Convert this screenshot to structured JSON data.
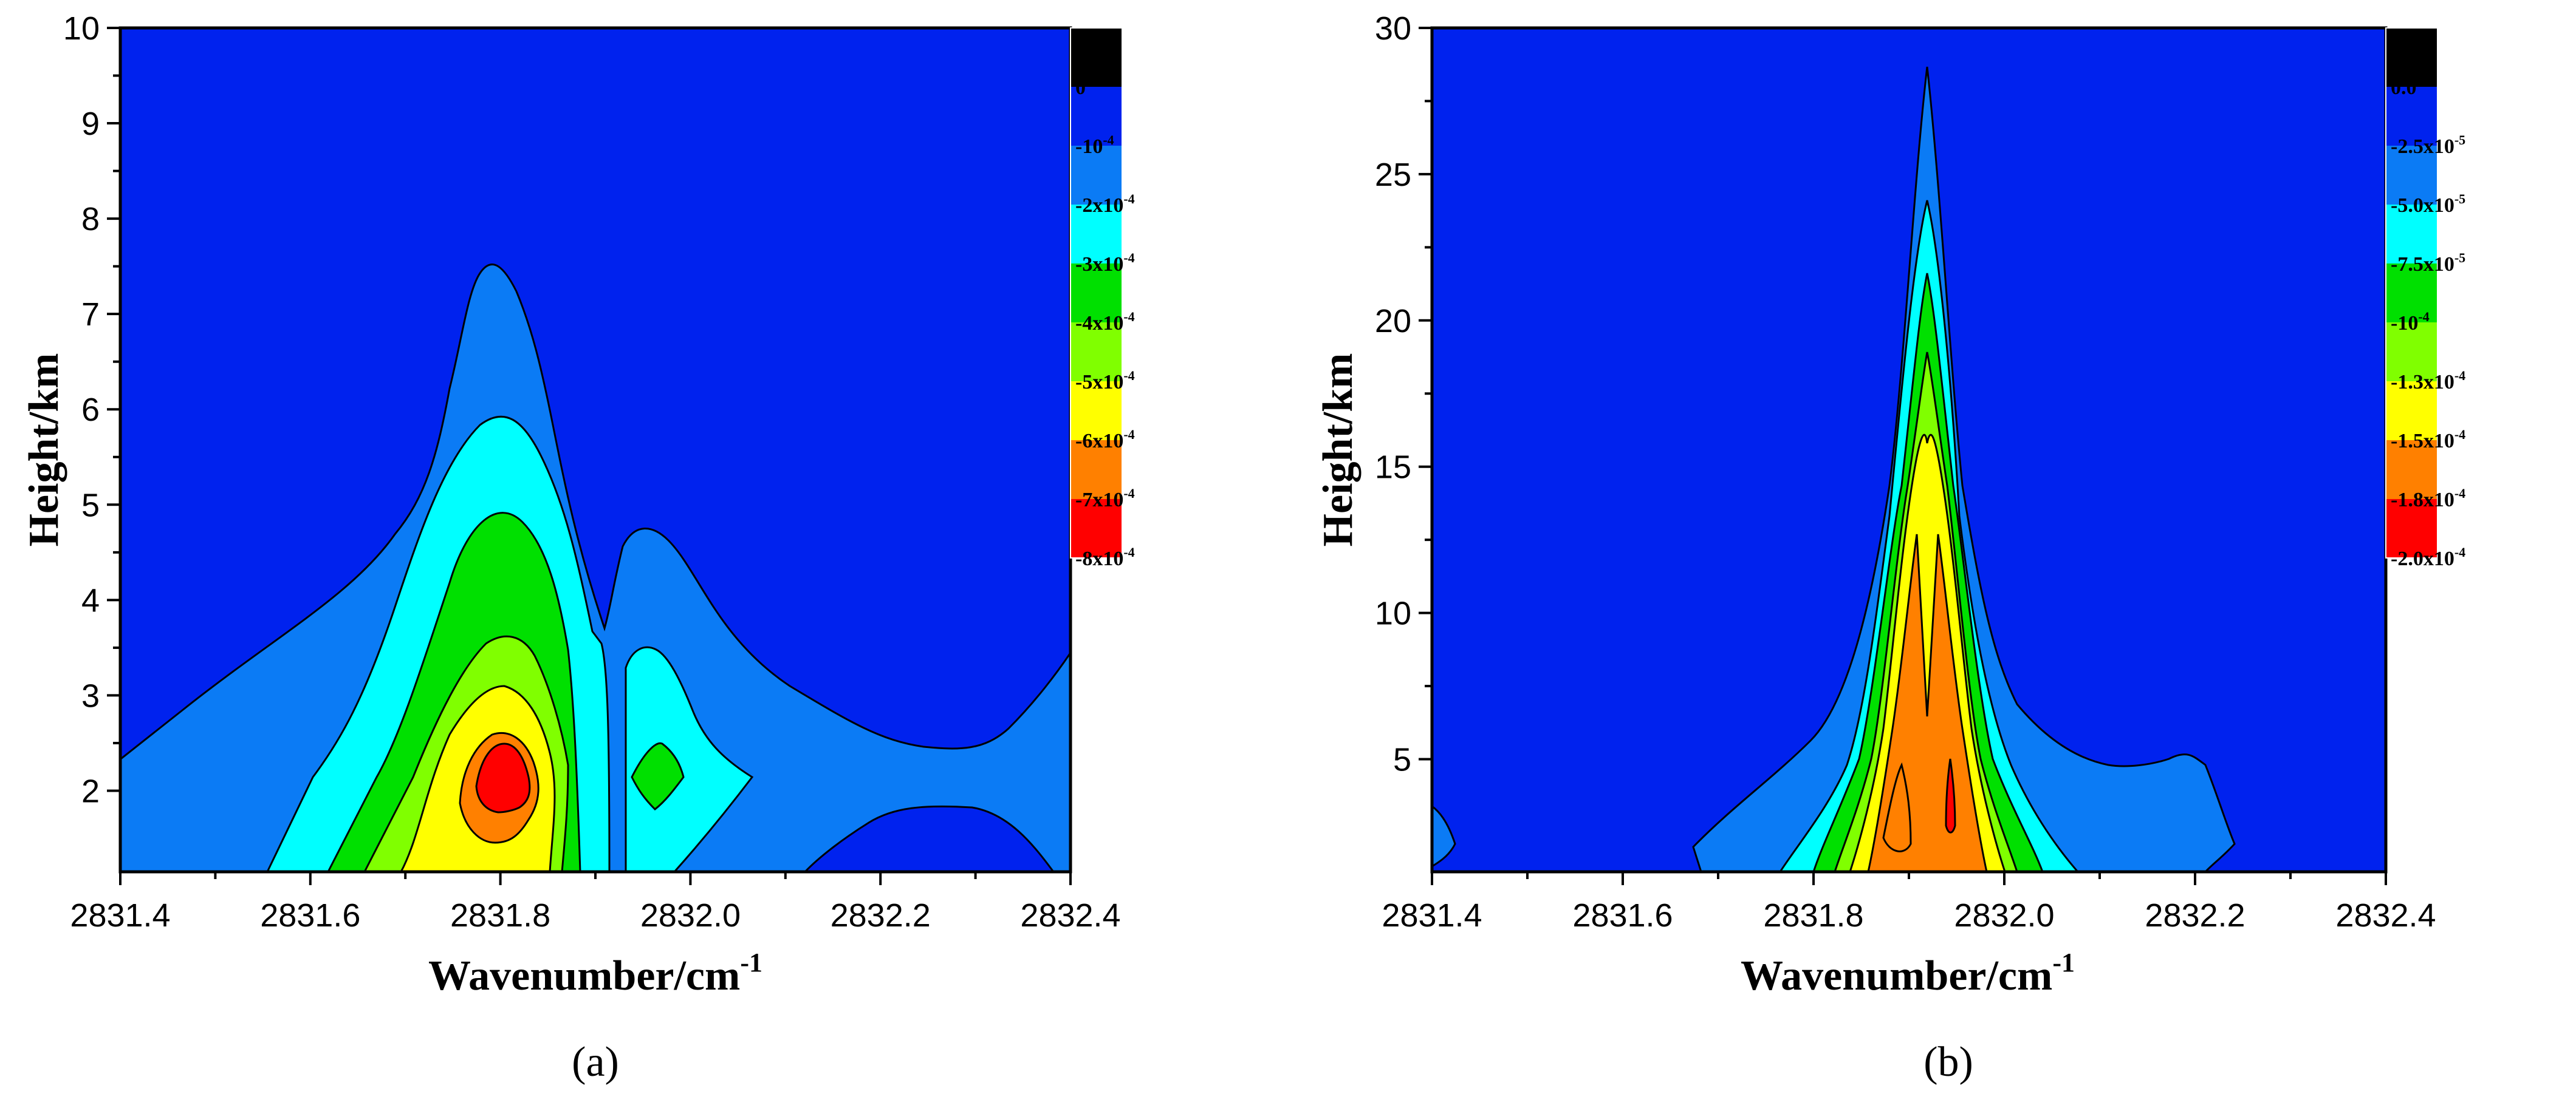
{
  "chart_data": [
    {
      "type": "contour",
      "panel_label": "(a)",
      "xlabel": "Wavenumber/cm",
      "xlabel_sup": "-1",
      "ylabel": "Height/km",
      "xlim": [
        2831.4,
        2832.4
      ],
      "ylim": [
        1.15,
        10
      ],
      "x_ticks": [
        2831.4,
        2831.6,
        2831.8,
        2832.0,
        2832.2,
        2832.4
      ],
      "x_tick_labels": [
        "2831.4",
        "2831.6",
        "2831.8",
        "2832.0",
        "2832.2",
        "2832.4"
      ],
      "y_ticks": [
        2,
        3,
        4,
        5,
        6,
        7,
        8,
        9,
        10
      ],
      "y_tick_labels": [
        "2",
        "3",
        "4",
        "5",
        "6",
        "7",
        "8",
        "9",
        "10"
      ],
      "colorbar": {
        "colors": [
          "#000000",
          "#0022ee",
          "#0b7bf5",
          "#00ffff",
          "#00e000",
          "#80ff00",
          "#ffff00",
          "#ff8000",
          "#ff0000"
        ],
        "labels": [
          {
            "base": "0",
            "exp": ""
          },
          {
            "base": "-10",
            "exp": "-4"
          },
          {
            "base": "-2x10",
            "exp": "-4"
          },
          {
            "base": "-3x10",
            "exp": "-4"
          },
          {
            "base": "-4x10",
            "exp": "-4"
          },
          {
            "base": "-5x10",
            "exp": "-4"
          },
          {
            "base": "-6x10",
            "exp": "-4"
          },
          {
            "base": "-7x10",
            "exp": "-4"
          },
          {
            "base": "-8x10",
            "exp": "-4"
          }
        ]
      },
      "features": [
        {
          "x": 2831.81,
          "y": 2.15,
          "min_level": -0.0008,
          "desc": "main absorption minimum"
        },
        {
          "x": 2831.95,
          "y": 2.15,
          "min_level": -0.0004,
          "desc": "secondary minimum"
        }
      ]
    },
    {
      "type": "contour",
      "panel_label": "(b)",
      "xlabel": "Wavenumber/cm",
      "xlabel_sup": "-1",
      "ylabel": "Height/km",
      "xlim": [
        2831.4,
        2832.4
      ],
      "ylim": [
        1.15,
        30
      ],
      "x_ticks": [
        2831.4,
        2831.6,
        2831.8,
        2832.0,
        2832.2,
        2832.4
      ],
      "x_tick_labels": [
        "2831.4",
        "2831.6",
        "2831.8",
        "2832.0",
        "2832.2",
        "2832.4"
      ],
      "y_ticks": [
        5,
        10,
        15,
        20,
        25,
        30
      ],
      "y_tick_labels": [
        "5",
        "10",
        "15",
        "20",
        "25",
        "30"
      ],
      "colorbar": {
        "colors": [
          "#000000",
          "#0022ee",
          "#0b7bf5",
          "#00ffff",
          "#00e000",
          "#80ff00",
          "#ffff00",
          "#ff8000",
          "#ff0000"
        ],
        "labels": [
          {
            "base": "0.0",
            "exp": ""
          },
          {
            "base": "-2.5x10",
            "exp": "-5"
          },
          {
            "base": "-5.0x10",
            "exp": "-5"
          },
          {
            "base": "-7.5x10",
            "exp": "-5"
          },
          {
            "base": "-10",
            "exp": "-4"
          },
          {
            "base": "-1.3x10",
            "exp": "-4"
          },
          {
            "base": "-1.5x10",
            "exp": "-4"
          },
          {
            "base": "-1.8x10",
            "exp": "-4"
          },
          {
            "base": "-2.0x10",
            "exp": "-4"
          }
        ]
      },
      "features": [
        {
          "x": 2831.91,
          "y": 3,
          "min_level": -0.0002,
          "desc": "narrow absorption core"
        }
      ]
    }
  ]
}
